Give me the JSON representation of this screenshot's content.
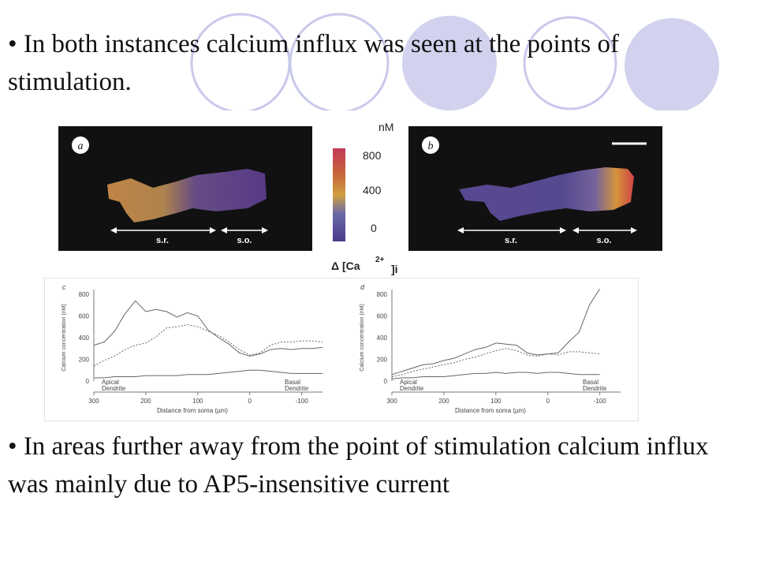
{
  "bullets": [
    {
      "symbol": "•",
      "text": "In both instances calcium influx was seen at the points of stimulation."
    },
    {
      "symbol": "•",
      "text": "In areas further away from the point of stimulation calcium influx was mainly due to AP5-insensitive current"
    }
  ],
  "colorbar": {
    "unit": "nM",
    "ticks": [
      "800",
      "400",
      "0"
    ],
    "label": "Δ [Ca",
    "sup": "2+",
    "sub": "]i"
  },
  "panels": [
    {
      "letter": "a",
      "labels": [
        "s.r.",
        "s.o."
      ]
    },
    {
      "letter": "b",
      "labels": [
        "s.r.",
        "s.o."
      ]
    }
  ],
  "chart_data": [
    {
      "type": "line",
      "panel": "c",
      "xlabel": "Distance from soma (µm)",
      "ylabel": "Calcium concentration (nM)",
      "xticks": [
        "300",
        "200",
        "100",
        "0",
        "-100"
      ],
      "yticks": [
        "800",
        "600",
        "400",
        "200",
        "0"
      ],
      "xlim": [
        300,
        -140
      ],
      "ylim": [
        0,
        800
      ],
      "annotations": [
        "Apical Dendrite",
        "Basal Dendrite"
      ],
      "x": [
        300,
        280,
        260,
        240,
        220,
        200,
        180,
        160,
        140,
        120,
        100,
        80,
        60,
        40,
        20,
        0,
        -20,
        -40,
        -60,
        -80,
        -100,
        -120,
        -140
      ],
      "series": [
        {
          "style": "solid",
          "values": [
            330,
            360,
            460,
            620,
            740,
            640,
            660,
            640,
            590,
            630,
            600,
            470,
            400,
            340,
            260,
            230,
            250,
            290,
            300,
            290,
            300,
            300,
            310
          ]
        },
        {
          "style": "dashed",
          "values": [
            140,
            190,
            230,
            290,
            330,
            350,
            410,
            490,
            500,
            520,
            500,
            460,
            420,
            360,
            290,
            240,
            260,
            330,
            360,
            360,
            370,
            370,
            360
          ]
        },
        {
          "style": "solid",
          "values": [
            30,
            30,
            40,
            40,
            40,
            50,
            50,
            50,
            50,
            60,
            60,
            60,
            70,
            80,
            90,
            100,
            100,
            90,
            80,
            70,
            70,
            70,
            70
          ]
        }
      ]
    },
    {
      "type": "line",
      "panel": "d",
      "xlabel": "Distance from soma (µm)",
      "ylabel": "Calcium concentration (nM)",
      "xticks": [
        "300",
        "200",
        "100",
        "0",
        "-100"
      ],
      "yticks": [
        "800",
        "600",
        "400",
        "200",
        "0"
      ],
      "xlim": [
        300,
        -140
      ],
      "ylim": [
        0,
        800
      ],
      "annotations": [
        "Apical Dendrite",
        "Basal Dendrite"
      ],
      "x": [
        300,
        280,
        260,
        240,
        220,
        200,
        180,
        160,
        140,
        120,
        100,
        80,
        60,
        40,
        20,
        0,
        -20,
        -40,
        -60,
        -80,
        -100
      ],
      "series": [
        {
          "style": "solid",
          "values": [
            60,
            90,
            120,
            150,
            160,
            190,
            210,
            250,
            290,
            310,
            350,
            340,
            330,
            260,
            240,
            250,
            260,
            360,
            450,
            700,
            850
          ]
        },
        {
          "style": "dashed",
          "values": [
            40,
            60,
            90,
            110,
            130,
            150,
            170,
            200,
            220,
            250,
            280,
            300,
            280,
            240,
            230,
            250,
            240,
            270,
            270,
            260,
            250
          ]
        },
        {
          "style": "solid",
          "values": [
            20,
            30,
            30,
            40,
            40,
            40,
            50,
            60,
            70,
            70,
            80,
            70,
            80,
            80,
            70,
            80,
            80,
            70,
            60,
            60,
            60
          ]
        }
      ]
    }
  ]
}
